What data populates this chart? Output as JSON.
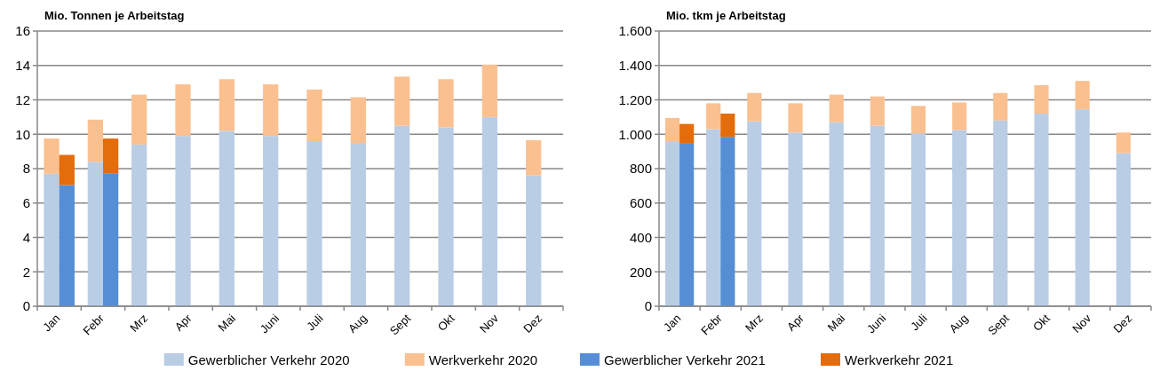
{
  "chart_data": [
    {
      "type": "bar",
      "title": "Mio. Tonnen je Arbeitstag",
      "stacked": true,
      "categories": [
        "Jan",
        null,
        "Febr",
        null,
        "Mrz",
        null,
        "Apr",
        null,
        "Mai",
        null,
        "Juni",
        null,
        "Juli",
        null,
        "Aug",
        null,
        "Sept",
        null,
        "Okt",
        null,
        "Nov",
        null,
        "Dez",
        null
      ],
      "series": [
        {
          "name": "Gewerblicher Verkehr 2020",
          "color": "#b9cde5",
          "values": [
            7.7,
            null,
            8.4,
            null,
            9.4,
            null,
            9.9,
            null,
            10.2,
            null,
            9.9,
            null,
            9.6,
            null,
            9.5,
            null,
            10.5,
            null,
            10.4,
            null,
            11.0,
            null,
            7.6,
            null
          ]
        },
        {
          "name": "Werkverkehr 2020",
          "color": "#fac090",
          "values": [
            2.05,
            null,
            2.45,
            null,
            2.9,
            null,
            3.0,
            null,
            3.0,
            null,
            3.0,
            null,
            3.0,
            null,
            2.65,
            null,
            2.85,
            null,
            2.8,
            null,
            3.05,
            null,
            2.05,
            null
          ]
        },
        {
          "name": "Gewerblicher Verkehr 2021",
          "color": "#558ed5",
          "values": [
            null,
            7.05,
            null,
            7.7,
            null,
            null,
            null,
            null,
            null,
            null,
            null,
            null,
            null,
            null,
            null,
            null,
            null,
            null,
            null,
            null,
            null,
            null,
            null,
            null
          ]
        },
        {
          "name": "Werkverkehr 2021",
          "color": "#e46c0a",
          "values": [
            null,
            1.75,
            null,
            2.05,
            null,
            null,
            null,
            null,
            null,
            null,
            null,
            null,
            null,
            null,
            null,
            null,
            null,
            null,
            null,
            null,
            null,
            null,
            null,
            null
          ]
        }
      ],
      "ylim": [
        0,
        16
      ],
      "yticks": [
        0,
        2,
        4,
        6,
        8,
        10,
        12,
        14,
        16
      ],
      "grid": "y",
      "legend": "bottom"
    },
    {
      "type": "bar",
      "title": "Mio. tkm je Arbeitstag",
      "stacked": true,
      "categories": [
        "Jan",
        null,
        "Febr",
        null,
        "Mrz",
        null,
        "Apr",
        null,
        "Mai",
        null,
        "Juni",
        null,
        "Juli",
        null,
        "Aug",
        null,
        "Sept",
        null,
        "Okt",
        null,
        "Nov",
        null,
        "Dez",
        null
      ],
      "series": [
        {
          "color": "#b9cde5",
          "values": [
            955,
            null,
            1030,
            null,
            1075,
            null,
            1010,
            null,
            1070,
            null,
            1050,
            null,
            1005,
            null,
            1025,
            null,
            1080,
            null,
            1120,
            null,
            1145,
            null,
            890,
            null
          ]
        },
        {
          "color": "#fac090",
          "values": [
            140,
            null,
            150,
            null,
            165,
            null,
            170,
            null,
            160,
            null,
            170,
            null,
            160,
            null,
            160,
            null,
            160,
            null,
            165,
            null,
            165,
            null,
            120,
            null
          ]
        },
        {
          "color": "#558ed5",
          "values": [
            null,
            945,
            null,
            985,
            null,
            null,
            null,
            null,
            null,
            null,
            null,
            null,
            null,
            null,
            null,
            null,
            null,
            null,
            null,
            null,
            null,
            null,
            null,
            null
          ]
        },
        {
          "color": "#e46c0a",
          "values": [
            null,
            115,
            null,
            135,
            null,
            null,
            null,
            null,
            null,
            null,
            null,
            null,
            null,
            null,
            null,
            null,
            null,
            null,
            null,
            null,
            null,
            null,
            null,
            null
          ]
        }
      ],
      "ylim": [
        0,
        1600
      ],
      "yticks": [
        0,
        200,
        400,
        600,
        800,
        {
          "value": 1000,
          "label": "1.000"
        },
        {
          "value": 1200,
          "label": "1.200"
        },
        {
          "value": 1400,
          "label": "1.400"
        },
        {
          "value": 1600,
          "label": "1.600"
        }
      ],
      "grid": "y"
    }
  ]
}
